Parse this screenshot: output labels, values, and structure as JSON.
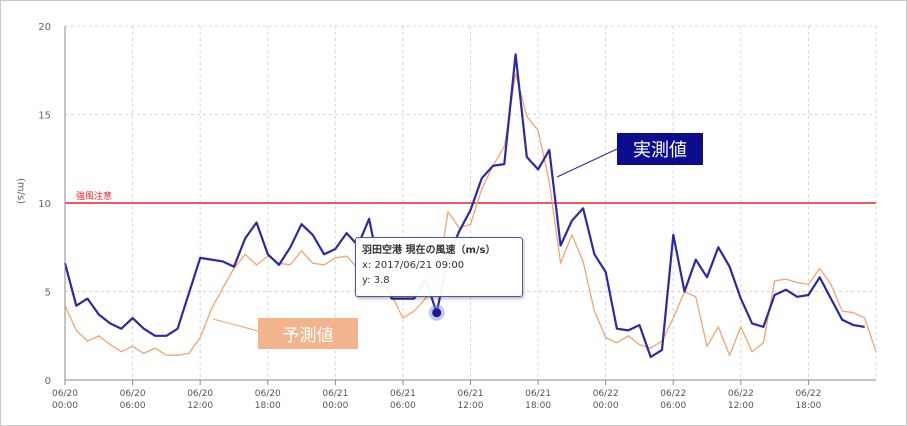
{
  "chart_data": {
    "type": "line",
    "title": "",
    "ylabel": "(m/s)",
    "xlabel": "",
    "ylim": [
      0,
      20
    ],
    "yticks": [
      0,
      5,
      10,
      15,
      20
    ],
    "x_ticks": [
      {
        "date": "06/20",
        "time": "00:00"
      },
      {
        "date": "06/20",
        "time": "06:00"
      },
      {
        "date": "06/20",
        "time": "12:00"
      },
      {
        "date": "06/20",
        "time": "18:00"
      },
      {
        "date": "06/21",
        "time": "00:00"
      },
      {
        "date": "06/21",
        "time": "06:00"
      },
      {
        "date": "06/21",
        "time": "12:00"
      },
      {
        "date": "06/21",
        "time": "18:00"
      },
      {
        "date": "06/22",
        "time": "00:00"
      },
      {
        "date": "06/22",
        "time": "06:00"
      },
      {
        "date": "06/22",
        "time": "12:00"
      },
      {
        "date": "06/22",
        "time": "18:00"
      }
    ],
    "grid": true,
    "threshold": {
      "label": "強風注意",
      "value": 10,
      "color": "#e8202a"
    },
    "series": [
      {
        "name": "実測値",
        "color": "#2b2b9e",
        "x_hours": [
          0,
          1,
          2,
          3,
          4,
          5,
          6,
          7,
          8,
          9,
          10,
          11,
          12,
          13,
          14,
          15,
          16,
          17,
          18,
          19,
          20,
          21,
          22,
          23,
          24,
          25,
          26,
          27,
          28,
          29,
          30,
          31,
          32,
          33,
          34,
          35,
          36,
          37,
          38,
          39,
          40,
          41,
          42,
          43,
          44,
          45,
          46,
          47,
          48,
          49,
          50,
          51,
          52,
          53,
          54,
          55,
          56,
          57,
          58,
          59,
          60,
          61,
          62,
          63,
          64,
          65,
          66,
          67,
          68,
          69,
          70,
          71
        ],
        "values": [
          6.6,
          4.2,
          4.6,
          3.7,
          3.2,
          2.9,
          3.5,
          2.9,
          2.5,
          2.5,
          2.9,
          4.9,
          6.9,
          6.8,
          6.7,
          6.4,
          8.0,
          8.9,
          7.1,
          6.5,
          7.5,
          8.8,
          8.2,
          7.1,
          7.4,
          8.3,
          7.6,
          9.1,
          6.0,
          4.6,
          4.6,
          4.6,
          5.7,
          3.8,
          6.9,
          8.4,
          9.6,
          11.4,
          12.1,
          12.2,
          18.4,
          12.6,
          11.9,
          13.0,
          7.6,
          9.0,
          9.7,
          7.1,
          6.1,
          2.9,
          2.8,
          3.1,
          1.3,
          1.7,
          8.2,
          5.0,
          6.8,
          5.8,
          7.5,
          6.4,
          4.6,
          3.2,
          3.0,
          4.8,
          5.1,
          4.7,
          4.8,
          5.8,
          4.6,
          3.4,
          3.1,
          3.0
        ]
      },
      {
        "name": "予測値",
        "color": "#f2a470",
        "x_hours": [
          0,
          1,
          2,
          3,
          4,
          5,
          6,
          7,
          8,
          9,
          10,
          11,
          12,
          13,
          14,
          15,
          16,
          17,
          18,
          19,
          20,
          21,
          22,
          23,
          24,
          25,
          26,
          27,
          28,
          29,
          30,
          31,
          32,
          33,
          34,
          35,
          36,
          37,
          38,
          39,
          40,
          41,
          42,
          43,
          44,
          45,
          46,
          47,
          48,
          49,
          50,
          51,
          52,
          53,
          54,
          55,
          56,
          57,
          58,
          59,
          60,
          61,
          62,
          63,
          64,
          65,
          66,
          67,
          68,
          69,
          70,
          71,
          72
        ],
        "values": [
          4.2,
          2.8,
          2.2,
          2.5,
          2.0,
          1.6,
          1.9,
          1.5,
          1.8,
          1.4,
          1.4,
          1.5,
          2.4,
          4.0,
          5.2,
          6.3,
          7.1,
          6.5,
          7.0,
          6.6,
          6.5,
          7.3,
          6.6,
          6.5,
          6.9,
          7.0,
          6.3,
          7.0,
          5.6,
          4.8,
          3.5,
          3.9,
          4.6,
          5.4,
          9.5,
          8.6,
          8.8,
          10.8,
          12.1,
          13.2,
          17.3,
          14.9,
          14.1,
          11.2,
          6.6,
          8.2,
          6.7,
          3.9,
          2.4,
          2.1,
          2.5,
          2.0,
          1.8,
          2.2,
          3.5,
          5.0,
          4.7,
          1.9,
          3.0,
          1.4,
          3.0,
          1.6,
          2.1,
          5.6,
          5.7,
          5.5,
          5.4,
          6.3,
          5.4,
          3.9,
          3.8,
          3.5,
          1.6
        ]
      }
    ],
    "tooltip": {
      "title": "羽田空港 現在の風速（m/s）",
      "x_line": "x: 2017/06/21 09:00",
      "y_line": "y: 3.8",
      "point_hour": 33,
      "point_value": 3.8
    },
    "callouts": {
      "actual": "実測値",
      "forecast": "予測値"
    }
  }
}
